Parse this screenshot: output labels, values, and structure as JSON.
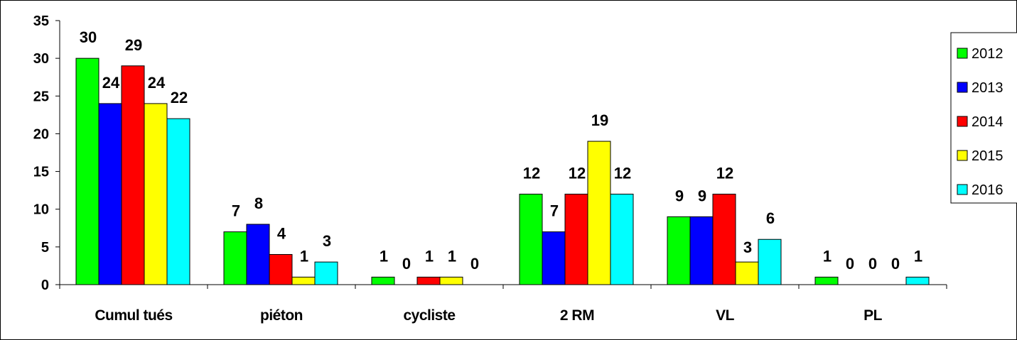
{
  "chart_data": {
    "type": "bar",
    "categories": [
      "Cumul tués",
      "piéton",
      "cycliste",
      "2 RM",
      "VL",
      "PL"
    ],
    "series": [
      {
        "name": "2012",
        "color": "#00ff00",
        "values": [
          30,
          7,
          1,
          12,
          9,
          1
        ]
      },
      {
        "name": "2013",
        "color": "#0000ff",
        "values": [
          24,
          8,
          0,
          7,
          9,
          0
        ]
      },
      {
        "name": "2014",
        "color": "#ff0000",
        "values": [
          29,
          4,
          1,
          12,
          12,
          0
        ]
      },
      {
        "name": "2015",
        "color": "#ffff00",
        "values": [
          24,
          1,
          1,
          19,
          3,
          0
        ]
      },
      {
        "name": "2016",
        "color": "#00ffff",
        "values": [
          22,
          3,
          0,
          12,
          6,
          1
        ]
      }
    ],
    "yticks": [
      0,
      5,
      10,
      15,
      20,
      25,
      30,
      35
    ],
    "ylim": [
      0,
      35
    ],
    "title": "",
    "xlabel": "",
    "ylabel": "",
    "grid": false,
    "legend_position": "right"
  }
}
